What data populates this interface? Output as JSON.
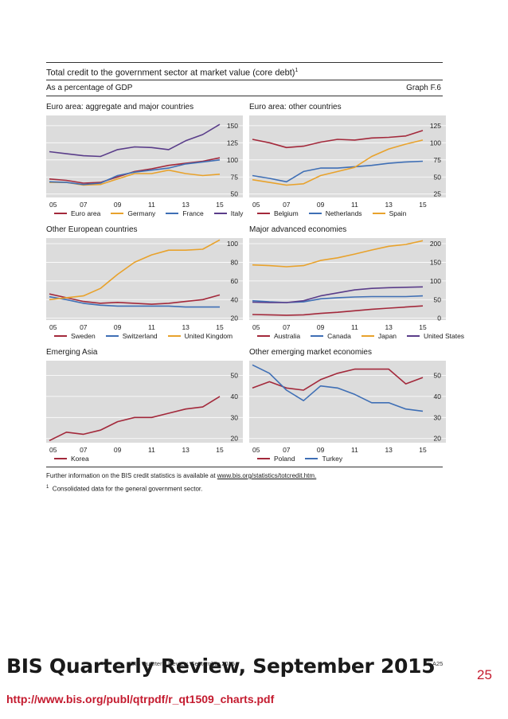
{
  "page": {
    "title": "Total credit to the government sector at market value (core debt)",
    "title_footnote": "1",
    "subtitle": "As a percentage of GDP",
    "graph_ref": "Graph F.6",
    "footnote_text": "Further information on the BIS credit statistics is available at ",
    "footnote_link": "www.bis.org/statistics/totcredit.htm.",
    "footnote2_marker": "1",
    "footnote2_text": "Consolidated data for the general government sector.",
    "overlay_title": "BIS Quarterly Review, September 2015",
    "footer_small": "BIS Quarterly Review, September 2015",
    "page_id": "A25",
    "page_number": "25",
    "source_url": "http://www.bis.org/publ/qtrpdf/r_qt1509_charts.pdf"
  },
  "chart_data": [
    {
      "type": "line",
      "title": "Euro area: aggregate and major countries",
      "x_ticks": [
        "05",
        "07",
        "09",
        "11",
        "13",
        "15"
      ],
      "x": [
        2005,
        2015
      ],
      "ylim": [
        45,
        165
      ],
      "y_ticks": [
        50,
        75,
        100,
        125,
        150
      ],
      "series": [
        {
          "name": "Euro area",
          "color": "#a3293b",
          "values": [
            [
              2005,
              72
            ],
            [
              2006,
              70
            ],
            [
              2007,
              66
            ],
            [
              2008,
              67
            ],
            [
              2009,
              75
            ],
            [
              2010,
              83
            ],
            [
              2011,
              87
            ],
            [
              2012,
              92
            ],
            [
              2013,
              95
            ],
            [
              2014,
              98
            ],
            [
              2015,
              103
            ]
          ]
        },
        {
          "name": "Germany",
          "color": "#e8a22c",
          "values": [
            [
              2005,
              67
            ],
            [
              2006,
              67
            ],
            [
              2007,
              63
            ],
            [
              2008,
              64
            ],
            [
              2009,
              72
            ],
            [
              2010,
              80
            ],
            [
              2011,
              80
            ],
            [
              2012,
              85
            ],
            [
              2013,
              80
            ],
            [
              2014,
              77
            ],
            [
              2015,
              79
            ]
          ]
        },
        {
          "name": "France",
          "color": "#3f6fb5",
          "values": [
            [
              2005,
              68
            ],
            [
              2006,
              67
            ],
            [
              2007,
              64
            ],
            [
              2008,
              66
            ],
            [
              2009,
              77
            ],
            [
              2010,
              82
            ],
            [
              2011,
              85
            ],
            [
              2012,
              88
            ],
            [
              2013,
              94
            ],
            [
              2014,
              97
            ],
            [
              2015,
              100
            ]
          ]
        },
        {
          "name": "Italy",
          "color": "#5a3d8a",
          "values": [
            [
              2005,
              112
            ],
            [
              2006,
              109
            ],
            [
              2007,
              106
            ],
            [
              2008,
              105
            ],
            [
              2009,
              115
            ],
            [
              2010,
              119
            ],
            [
              2011,
              118
            ],
            [
              2012,
              115
            ],
            [
              2013,
              128
            ],
            [
              2014,
              137
            ],
            [
              2015,
              152
            ]
          ]
        }
      ]
    },
    {
      "type": "line",
      "title": "Euro area: other countries",
      "x_ticks": [
        "05",
        "07",
        "09",
        "11",
        "13",
        "15"
      ],
      "x": [
        2005,
        2015
      ],
      "ylim": [
        20,
        140
      ],
      "y_ticks": [
        25,
        50,
        75,
        100,
        125
      ],
      "series": [
        {
          "name": "Belgium",
          "color": "#a3293b",
          "values": [
            [
              2005,
              105
            ],
            [
              2006,
              100
            ],
            [
              2007,
              93
            ],
            [
              2008,
              95
            ],
            [
              2009,
              101
            ],
            [
              2010,
              105
            ],
            [
              2011,
              104
            ],
            [
              2012,
              107
            ],
            [
              2013,
              108
            ],
            [
              2014,
              110
            ],
            [
              2015,
              118
            ]
          ]
        },
        {
          "name": "Netherlands",
          "color": "#3f6fb5",
          "values": [
            [
              2005,
              52
            ],
            [
              2006,
              48
            ],
            [
              2007,
              43
            ],
            [
              2008,
              58
            ],
            [
              2009,
              63
            ],
            [
              2010,
              63
            ],
            [
              2011,
              65
            ],
            [
              2012,
              67
            ],
            [
              2013,
              70
            ],
            [
              2014,
              72
            ],
            [
              2015,
              73
            ]
          ]
        },
        {
          "name": "Spain",
          "color": "#e8a22c",
          "values": [
            [
              2005,
              46
            ],
            [
              2006,
              42
            ],
            [
              2007,
              38
            ],
            [
              2008,
              40
            ],
            [
              2009,
              52
            ],
            [
              2010,
              58
            ],
            [
              2011,
              64
            ],
            [
              2012,
              80
            ],
            [
              2013,
              91
            ],
            [
              2014,
              98
            ],
            [
              2015,
              104
            ]
          ]
        }
      ]
    },
    {
      "type": "line",
      "title": "Other European countries",
      "x_ticks": [
        "05",
        "07",
        "09",
        "11",
        "13",
        "15"
      ],
      "x": [
        2005,
        2015
      ],
      "ylim": [
        18,
        106
      ],
      "y_ticks": [
        20,
        40,
        60,
        80,
        100
      ],
      "series": [
        {
          "name": "Sweden",
          "color": "#a3293b",
          "values": [
            [
              2005,
              46
            ],
            [
              2006,
              42
            ],
            [
              2007,
              38
            ],
            [
              2008,
              36
            ],
            [
              2009,
              37
            ],
            [
              2010,
              36
            ],
            [
              2011,
              35
            ],
            [
              2012,
              36
            ],
            [
              2013,
              38
            ],
            [
              2014,
              40
            ],
            [
              2015,
              45
            ]
          ]
        },
        {
          "name": "Switzerland",
          "color": "#3f6fb5",
          "values": [
            [
              2005,
              43
            ],
            [
              2006,
              40
            ],
            [
              2007,
              36
            ],
            [
              2008,
              34
            ],
            [
              2009,
              33
            ],
            [
              2010,
              33
            ],
            [
              2011,
              33
            ],
            [
              2012,
              33
            ],
            [
              2013,
              32
            ],
            [
              2014,
              32
            ],
            [
              2015,
              32
            ]
          ]
        },
        {
          "name": "United Kingdom",
          "color": "#e8a22c",
          "values": [
            [
              2005,
              40
            ],
            [
              2006,
              42
            ],
            [
              2007,
              44
            ],
            [
              2008,
              52
            ],
            [
              2009,
              67
            ],
            [
              2010,
              80
            ],
            [
              2011,
              88
            ],
            [
              2012,
              93
            ],
            [
              2013,
              93
            ],
            [
              2014,
              94
            ],
            [
              2015,
              104
            ]
          ]
        }
      ]
    },
    {
      "type": "line",
      "title": "Major advanced economies",
      "x_ticks": [
        "05",
        "07",
        "09",
        "11",
        "13",
        "15"
      ],
      "x": [
        2005,
        2015
      ],
      "ylim": [
        -5,
        215
      ],
      "y_ticks": [
        0,
        50,
        100,
        150,
        200
      ],
      "series": [
        {
          "name": "Australia",
          "color": "#a3293b",
          "values": [
            [
              2005,
              10
            ],
            [
              2006,
              9
            ],
            [
              2007,
              8
            ],
            [
              2008,
              9
            ],
            [
              2009,
              13
            ],
            [
              2010,
              16
            ],
            [
              2011,
              20
            ],
            [
              2012,
              24
            ],
            [
              2013,
              27
            ],
            [
              2014,
              30
            ],
            [
              2015,
              33
            ]
          ]
        },
        {
          "name": "Canada",
          "color": "#3f6fb5",
          "values": [
            [
              2005,
              47
            ],
            [
              2006,
              44
            ],
            [
              2007,
              42
            ],
            [
              2008,
              44
            ],
            [
              2009,
              52
            ],
            [
              2010,
              55
            ],
            [
              2011,
              57
            ],
            [
              2012,
              58
            ],
            [
              2013,
              58
            ],
            [
              2014,
              58
            ],
            [
              2015,
              60
            ]
          ]
        },
        {
          "name": "Japan",
          "color": "#e8a22c",
          "values": [
            [
              2005,
              143
            ],
            [
              2006,
              141
            ],
            [
              2007,
              138
            ],
            [
              2008,
              141
            ],
            [
              2009,
              155
            ],
            [
              2010,
              162
            ],
            [
              2011,
              172
            ],
            [
              2012,
              183
            ],
            [
              2013,
              193
            ],
            [
              2014,
              198
            ],
            [
              2015,
              208
            ]
          ]
        },
        {
          "name": "United States",
          "color": "#5a3d8a",
          "values": [
            [
              2005,
              43
            ],
            [
              2006,
              42
            ],
            [
              2007,
              42
            ],
            [
              2008,
              47
            ],
            [
              2009,
              60
            ],
            [
              2010,
              68
            ],
            [
              2011,
              76
            ],
            [
              2012,
              80
            ],
            [
              2013,
              82
            ],
            [
              2014,
              83
            ],
            [
              2015,
              84
            ]
          ]
        }
      ]
    },
    {
      "type": "line",
      "title": "Emerging Asia",
      "x_ticks": [
        "05",
        "07",
        "09",
        "11",
        "13",
        "15"
      ],
      "x": [
        2005,
        2015
      ],
      "ylim": [
        18,
        57
      ],
      "y_ticks": [
        20,
        30,
        40,
        50
      ],
      "series": [
        {
          "name": "Korea",
          "color": "#a3293b",
          "values": [
            [
              2005,
              19
            ],
            [
              2006,
              23
            ],
            [
              2007,
              22
            ],
            [
              2008,
              24
            ],
            [
              2009,
              28
            ],
            [
              2010,
              30
            ],
            [
              2011,
              30
            ],
            [
              2012,
              32
            ],
            [
              2013,
              34
            ],
            [
              2014,
              35
            ],
            [
              2015,
              40
            ]
          ]
        }
      ]
    },
    {
      "type": "line",
      "title": "Other emerging market economies",
      "x_ticks": [
        "05",
        "07",
        "09",
        "11",
        "13",
        "15"
      ],
      "x": [
        2005,
        2015
      ],
      "ylim": [
        18,
        57
      ],
      "y_ticks": [
        20,
        30,
        40,
        50
      ],
      "series": [
        {
          "name": "Poland",
          "color": "#a3293b",
          "values": [
            [
              2005,
              44
            ],
            [
              2006,
              47
            ],
            [
              2007,
              44
            ],
            [
              2008,
              43
            ],
            [
              2009,
              48
            ],
            [
              2010,
              51
            ],
            [
              2011,
              53
            ],
            [
              2012,
              53
            ],
            [
              2013,
              53
            ],
            [
              2014,
              46
            ],
            [
              2015,
              49
            ]
          ]
        },
        {
          "name": "Turkey",
          "color": "#3f6fb5",
          "values": [
            [
              2005,
              55
            ],
            [
              2006,
              51
            ],
            [
              2007,
              43
            ],
            [
              2008,
              38
            ],
            [
              2009,
              45
            ],
            [
              2010,
              44
            ],
            [
              2011,
              41
            ],
            [
              2012,
              37
            ],
            [
              2013,
              37
            ],
            [
              2014,
              34
            ],
            [
              2015,
              33
            ]
          ]
        }
      ]
    }
  ]
}
